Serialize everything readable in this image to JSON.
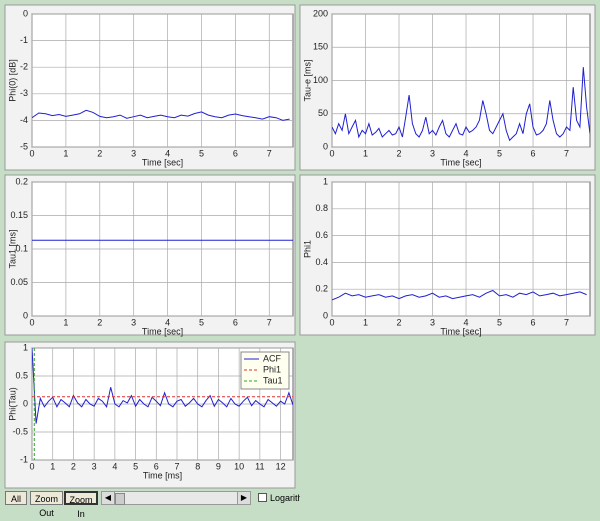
{
  "chart_data": [
    {
      "type": "line",
      "ylabel": "Phi(0) [dB]",
      "xlabel": "Time [sec]",
      "xlim": [
        0,
        7.7
      ],
      "xticks": [
        0,
        1,
        2,
        3,
        4,
        5,
        6,
        7
      ],
      "ylim": [
        -5,
        0
      ],
      "yticks": [
        0,
        -1,
        -2,
        -3,
        -4,
        -5
      ],
      "grid": true,
      "color": "#2020d0",
      "x": [
        0,
        0.2,
        0.4,
        0.6,
        0.8,
        1,
        1.2,
        1.4,
        1.6,
        1.8,
        2,
        2.2,
        2.4,
        2.6,
        2.8,
        3,
        3.2,
        3.4,
        3.6,
        3.8,
        4,
        4.2,
        4.4,
        4.6,
        4.8,
        5,
        5.2,
        5.4,
        5.6,
        5.8,
        6,
        6.2,
        6.4,
        6.6,
        6.8,
        7,
        7.2,
        7.4,
        7.6
      ],
      "values": [
        -3.9,
        -3.72,
        -3.75,
        -3.82,
        -3.78,
        -3.85,
        -3.8,
        -3.75,
        -3.62,
        -3.7,
        -3.85,
        -3.9,
        -3.86,
        -3.8,
        -3.92,
        -3.86,
        -3.8,
        -3.9,
        -3.85,
        -3.8,
        -3.86,
        -3.9,
        -3.8,
        -3.84,
        -3.74,
        -3.68,
        -3.8,
        -3.86,
        -3.9,
        -3.8,
        -3.76,
        -3.82,
        -3.86,
        -3.9,
        -3.95,
        -3.86,
        -3.9,
        -4.0,
        -3.95
      ]
    },
    {
      "type": "line",
      "ylabel": "Tau-e [ms]",
      "xlabel": "Time [sec]",
      "xlim": [
        0,
        7.7
      ],
      "xticks": [
        0,
        1,
        2,
        3,
        4,
        5,
        6,
        7
      ],
      "ylim": [
        0,
        200
      ],
      "yticks": [
        0,
        50,
        100,
        150,
        200
      ],
      "grid": true,
      "color": "#2020d0",
      "x": [
        0,
        0.1,
        0.2,
        0.3,
        0.4,
        0.5,
        0.6,
        0.7,
        0.8,
        0.9,
        1,
        1.1,
        1.2,
        1.3,
        1.4,
        1.5,
        1.6,
        1.7,
        1.8,
        1.9,
        2,
        2.1,
        2.2,
        2.3,
        2.4,
        2.5,
        2.6,
        2.7,
        2.8,
        2.9,
        3,
        3.1,
        3.2,
        3.3,
        3.4,
        3.5,
        3.6,
        3.7,
        3.8,
        3.9,
        4,
        4.1,
        4.2,
        4.3,
        4.4,
        4.5,
        4.6,
        4.7,
        4.8,
        4.9,
        5,
        5.1,
        5.2,
        5.3,
        5.4,
        5.5,
        5.6,
        5.7,
        5.8,
        5.9,
        6,
        6.1,
        6.2,
        6.3,
        6.4,
        6.5,
        6.6,
        6.7,
        6.8,
        6.9,
        7,
        7.1,
        7.2,
        7.3,
        7.4,
        7.5,
        7.6,
        7.7
      ],
      "values": [
        30,
        20,
        35,
        25,
        50,
        20,
        30,
        40,
        15,
        25,
        20,
        35,
        18,
        22,
        28,
        15,
        20,
        25,
        18,
        20,
        30,
        15,
        45,
        78,
        35,
        20,
        15,
        25,
        45,
        20,
        25,
        18,
        30,
        40,
        20,
        15,
        25,
        35,
        20,
        18,
        30,
        22,
        25,
        30,
        40,
        70,
        50,
        25,
        20,
        30,
        40,
        50,
        25,
        10,
        15,
        20,
        35,
        20,
        50,
        65,
        30,
        18,
        20,
        25,
        35,
        70,
        40,
        20,
        15,
        20,
        30,
        25,
        90,
        40,
        30,
        120,
        60,
        20
      ]
    },
    {
      "type": "line",
      "ylabel": "Tau1 [ms]",
      "xlabel": "Time [sec]",
      "xlim": [
        0,
        7.7
      ],
      "xticks": [
        0,
        1,
        2,
        3,
        4,
        5,
        6,
        7
      ],
      "ylim": [
        0,
        0.2
      ],
      "yticks": [
        0,
        0.05,
        0.1,
        0.15,
        0.2
      ],
      "grid": true,
      "color": "#2020d0",
      "x": [
        0,
        7.7
      ],
      "values": [
        0.113,
        0.113
      ]
    },
    {
      "type": "line",
      "ylabel": "Phi1",
      "xlabel": "Time [sec]",
      "xlim": [
        0,
        7.7
      ],
      "xticks": [
        0,
        1,
        2,
        3,
        4,
        5,
        6,
        7
      ],
      "ylim": [
        0,
        1
      ],
      "yticks": [
        0,
        0.2,
        0.4,
        0.6,
        0.8,
        1
      ],
      "grid": true,
      "color": "#2020d0",
      "x": [
        0,
        0.2,
        0.4,
        0.6,
        0.8,
        1,
        1.2,
        1.4,
        1.6,
        1.8,
        2,
        2.2,
        2.4,
        2.6,
        2.8,
        3,
        3.2,
        3.4,
        3.6,
        3.8,
        4,
        4.2,
        4.4,
        4.6,
        4.8,
        5,
        5.2,
        5.4,
        5.6,
        5.8,
        6,
        6.2,
        6.4,
        6.6,
        6.8,
        7,
        7.2,
        7.4,
        7.6
      ],
      "values": [
        0.12,
        0.14,
        0.17,
        0.15,
        0.16,
        0.14,
        0.15,
        0.16,
        0.14,
        0.15,
        0.13,
        0.15,
        0.16,
        0.14,
        0.15,
        0.17,
        0.14,
        0.15,
        0.13,
        0.14,
        0.15,
        0.16,
        0.14,
        0.17,
        0.19,
        0.15,
        0.16,
        0.14,
        0.17,
        0.16,
        0.18,
        0.15,
        0.16,
        0.17,
        0.15,
        0.16,
        0.17,
        0.18,
        0.16
      ]
    },
    {
      "type": "line",
      "ylabel": "Phi(Tau)",
      "xlabel": "Time [ms]",
      "xlim": [
        0,
        12.6
      ],
      "xticks": [
        0,
        1,
        2,
        3,
        4,
        5,
        6,
        7,
        8,
        9,
        10,
        11,
        12
      ],
      "ylim": [
        -1,
        1
      ],
      "yticks": [
        1,
        0.5,
        0,
        -0.5,
        -1
      ],
      "grid": true,
      "legend": "upper right",
      "x": [
        0,
        0.2,
        0.4,
        0.6,
        0.8,
        1,
        1.2,
        1.4,
        1.6,
        1.8,
        2,
        2.2,
        2.4,
        2.6,
        2.8,
        3,
        3.2,
        3.4,
        3.6,
        3.8,
        4,
        4.2,
        4.4,
        4.6,
        4.8,
        5,
        5.2,
        5.4,
        5.6,
        5.8,
        6,
        6.2,
        6.4,
        6.6,
        6.8,
        7,
        7.2,
        7.4,
        7.6,
        7.8,
        8,
        8.2,
        8.4,
        8.6,
        8.8,
        9,
        9.2,
        9.4,
        9.6,
        9.8,
        10,
        10.2,
        10.4,
        10.6,
        10.8,
        11,
        11.2,
        11.4,
        11.6,
        11.8,
        12,
        12.2,
        12.4,
        12.6
      ],
      "series": [
        {
          "name": "ACF",
          "color": "#2020d0",
          "values": [
            1,
            -0.35,
            0.1,
            -0.05,
            0.05,
            0.12,
            -0.05,
            0.08,
            0.02,
            -0.05,
            0.15,
            0.02,
            -0.05,
            0.08,
            0.0,
            -0.04,
            0.1,
            0.05,
            -0.05,
            0.3,
            0.0,
            -0.05,
            0.06,
            0.02,
            0.15,
            -0.04,
            0.08,
            0.0,
            -0.05,
            0.12,
            0.05,
            -0.03,
            0.2,
            0.0,
            -0.05,
            0.05,
            0.08,
            -0.04,
            0.02,
            0.1,
            0.0,
            -0.05,
            0.06,
            0.15,
            -0.04,
            0.08,
            0.02,
            -0.05,
            0.1,
            0.0,
            -0.04,
            0.05,
            0.12,
            -0.03,
            0.06,
            0.0,
            -0.05,
            0.08,
            0.02,
            -0.04,
            0.05,
            0.0,
            0.2,
            -0.02
          ]
        }
      ],
      "hlines": [
        {
          "name": "Phi1",
          "color": "#e03030",
          "value": 0.13
        }
      ],
      "vlines": [
        {
          "name": "Tau1",
          "color": "#30a030",
          "value": 0.11
        }
      ]
    }
  ],
  "controls": {
    "buttons": [
      "All",
      "Zoom Out",
      "Zoom In"
    ],
    "checkbox": "Logarithm"
  }
}
